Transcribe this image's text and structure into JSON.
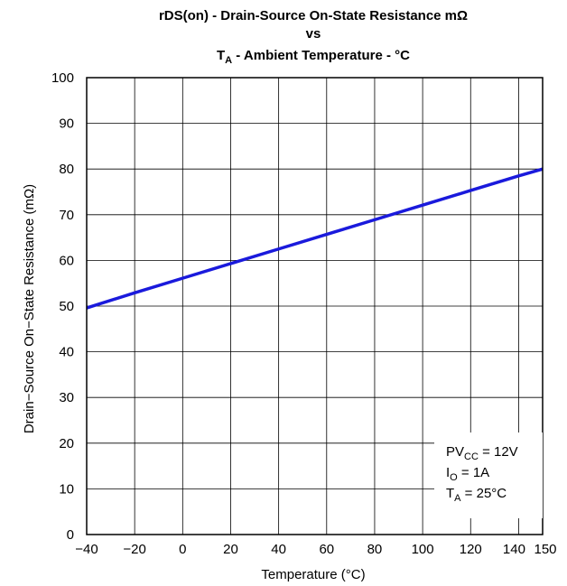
{
  "chart_data": {
    "type": "line",
    "title": {
      "line1": "rDS(on) - Drain-Source On-State Resistance mΩ",
      "line2": "vs",
      "line3_main": "T",
      "line3_sub": "A",
      "line3_rest": " - Ambient Temperature - °C"
    },
    "xlabel": "Temperature (°C)",
    "ylabel": "Drain−Source On−State Resistance (mΩ)",
    "xlim": [
      -40,
      150
    ],
    "ylim": [
      0,
      100
    ],
    "x_ticks": [
      -40,
      -20,
      0,
      20,
      40,
      60,
      80,
      100,
      120,
      140,
      150
    ],
    "x_tick_labels": [
      "−40",
      "−20",
      "0",
      "20",
      "40",
      "60",
      "80",
      "100",
      "120",
      "140",
      "150"
    ],
    "y_ticks": [
      0,
      10,
      20,
      30,
      40,
      50,
      60,
      70,
      80,
      90,
      100
    ],
    "y_tick_labels": [
      "0",
      "10",
      "20",
      "30",
      "40",
      "50",
      "60",
      "70",
      "80",
      "90",
      "100"
    ],
    "grid": true,
    "series": [
      {
        "color": "#1a1adc",
        "x": [
          -40,
          -20,
          0,
          20,
          40,
          60,
          80,
          100,
          120,
          140,
          150
        ],
        "y": [
          49.6,
          52.9,
          56.1,
          59.3,
          62.5,
          65.7,
          68.9,
          72.1,
          75.3,
          78.5,
          80.0
        ]
      }
    ],
    "conditions": [
      {
        "main": "PV",
        "sub": "CC",
        "rest": " = 12V"
      },
      {
        "main": "I",
        "sub": "O",
        "rest": " = 1A"
      },
      {
        "main": "T",
        "sub": "A",
        "rest": " = 25°C"
      }
    ]
  }
}
